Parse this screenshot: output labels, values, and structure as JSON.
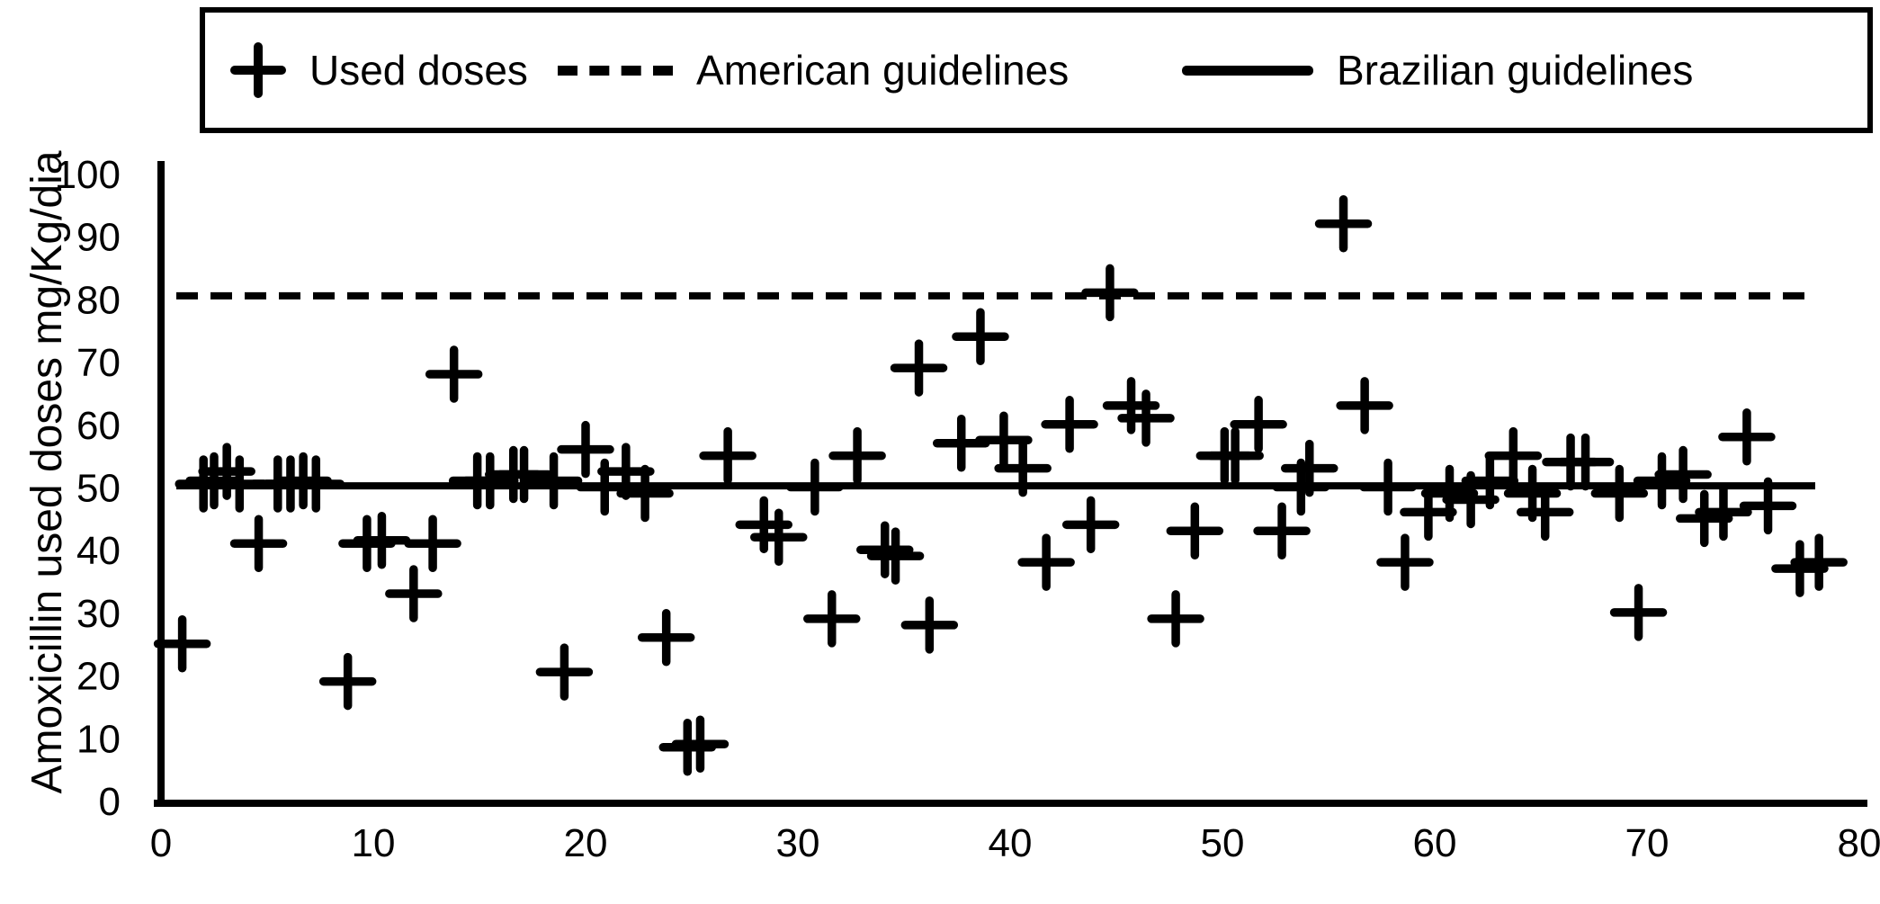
{
  "legend": {
    "items": [
      {
        "label": "Used doses",
        "marker": "plus"
      },
      {
        "label": "American guidelines",
        "marker": "dashed-line"
      },
      {
        "label": "Brazilian guidelines",
        "marker": "solid-line"
      }
    ]
  },
  "chart_data": {
    "type": "scatter",
    "title": "",
    "xlabel": "",
    "ylabel": "Amoxicillin used doses mg/Kg/dia",
    "xlim": [
      0,
      80
    ],
    "ylim": [
      0,
      100
    ],
    "x_ticks": [
      0,
      10,
      20,
      30,
      40,
      50,
      60,
      70,
      80
    ],
    "y_ticks": [
      0,
      10,
      20,
      30,
      40,
      50,
      60,
      70,
      80,
      90,
      100
    ],
    "grid": false,
    "legend_position": "top",
    "marker_symbol": "plus",
    "reference_lines": [
      {
        "name": "American guidelines",
        "style": "dashed",
        "y": 80.5
      },
      {
        "name": "Brazilian guidelines",
        "style": "solid",
        "y": 50.2
      }
    ],
    "series": [
      {
        "name": "Used doses",
        "points": [
          [
            1.0,
            25
          ],
          [
            2.0,
            50.5
          ],
          [
            2.5,
            51
          ],
          [
            3.1,
            52.5
          ],
          [
            3.7,
            50.5
          ],
          [
            4.6,
            41
          ],
          [
            5.5,
            50.5
          ],
          [
            6.1,
            50.5
          ],
          [
            6.7,
            51
          ],
          [
            7.3,
            50.5
          ],
          [
            8.8,
            19
          ],
          [
            9.7,
            41
          ],
          [
            10.4,
            41.5
          ],
          [
            11.9,
            33
          ],
          [
            12.8,
            41
          ],
          [
            13.8,
            68
          ],
          [
            14.9,
            51
          ],
          [
            15.5,
            51
          ],
          [
            16.6,
            52
          ],
          [
            17.1,
            52
          ],
          [
            18.5,
            51
          ],
          [
            19.0,
            20.5
          ],
          [
            20.0,
            56
          ],
          [
            20.9,
            50
          ],
          [
            21.9,
            52.5
          ],
          [
            22.8,
            49
          ],
          [
            23.8,
            26
          ],
          [
            24.8,
            8.5
          ],
          [
            25.4,
            9
          ],
          [
            26.7,
            55
          ],
          [
            28.4,
            44
          ],
          [
            29.1,
            42
          ],
          [
            30.8,
            50
          ],
          [
            31.6,
            29
          ],
          [
            32.8,
            55
          ],
          [
            34.1,
            40
          ],
          [
            34.6,
            39
          ],
          [
            35.7,
            69
          ],
          [
            36.2,
            28
          ],
          [
            37.7,
            57
          ],
          [
            38.6,
            74
          ],
          [
            39.7,
            57.5
          ],
          [
            40.6,
            53
          ],
          [
            41.7,
            38
          ],
          [
            42.8,
            60
          ],
          [
            43.8,
            44
          ],
          [
            44.7,
            81
          ],
          [
            45.7,
            63
          ],
          [
            46.4,
            61
          ],
          [
            47.8,
            29
          ],
          [
            48.7,
            43
          ],
          [
            50.1,
            55
          ],
          [
            50.6,
            55
          ],
          [
            51.7,
            60
          ],
          [
            52.8,
            43
          ],
          [
            53.7,
            50
          ],
          [
            54.1,
            53
          ],
          [
            55.7,
            92
          ],
          [
            56.7,
            63
          ],
          [
            57.8,
            50
          ],
          [
            58.6,
            38
          ],
          [
            59.7,
            46
          ],
          [
            60.7,
            49
          ],
          [
            61.7,
            48
          ],
          [
            62.6,
            51
          ],
          [
            63.7,
            55
          ],
          [
            64.6,
            49
          ],
          [
            65.2,
            46
          ],
          [
            66.4,
            54
          ],
          [
            67.1,
            54
          ],
          [
            68.7,
            49
          ],
          [
            69.6,
            30
          ],
          [
            70.7,
            51
          ],
          [
            71.7,
            52
          ],
          [
            72.7,
            45
          ],
          [
            73.6,
            46
          ],
          [
            74.7,
            58
          ],
          [
            75.7,
            47
          ],
          [
            77.2,
            37
          ],
          [
            78.1,
            38
          ]
        ]
      }
    ]
  }
}
